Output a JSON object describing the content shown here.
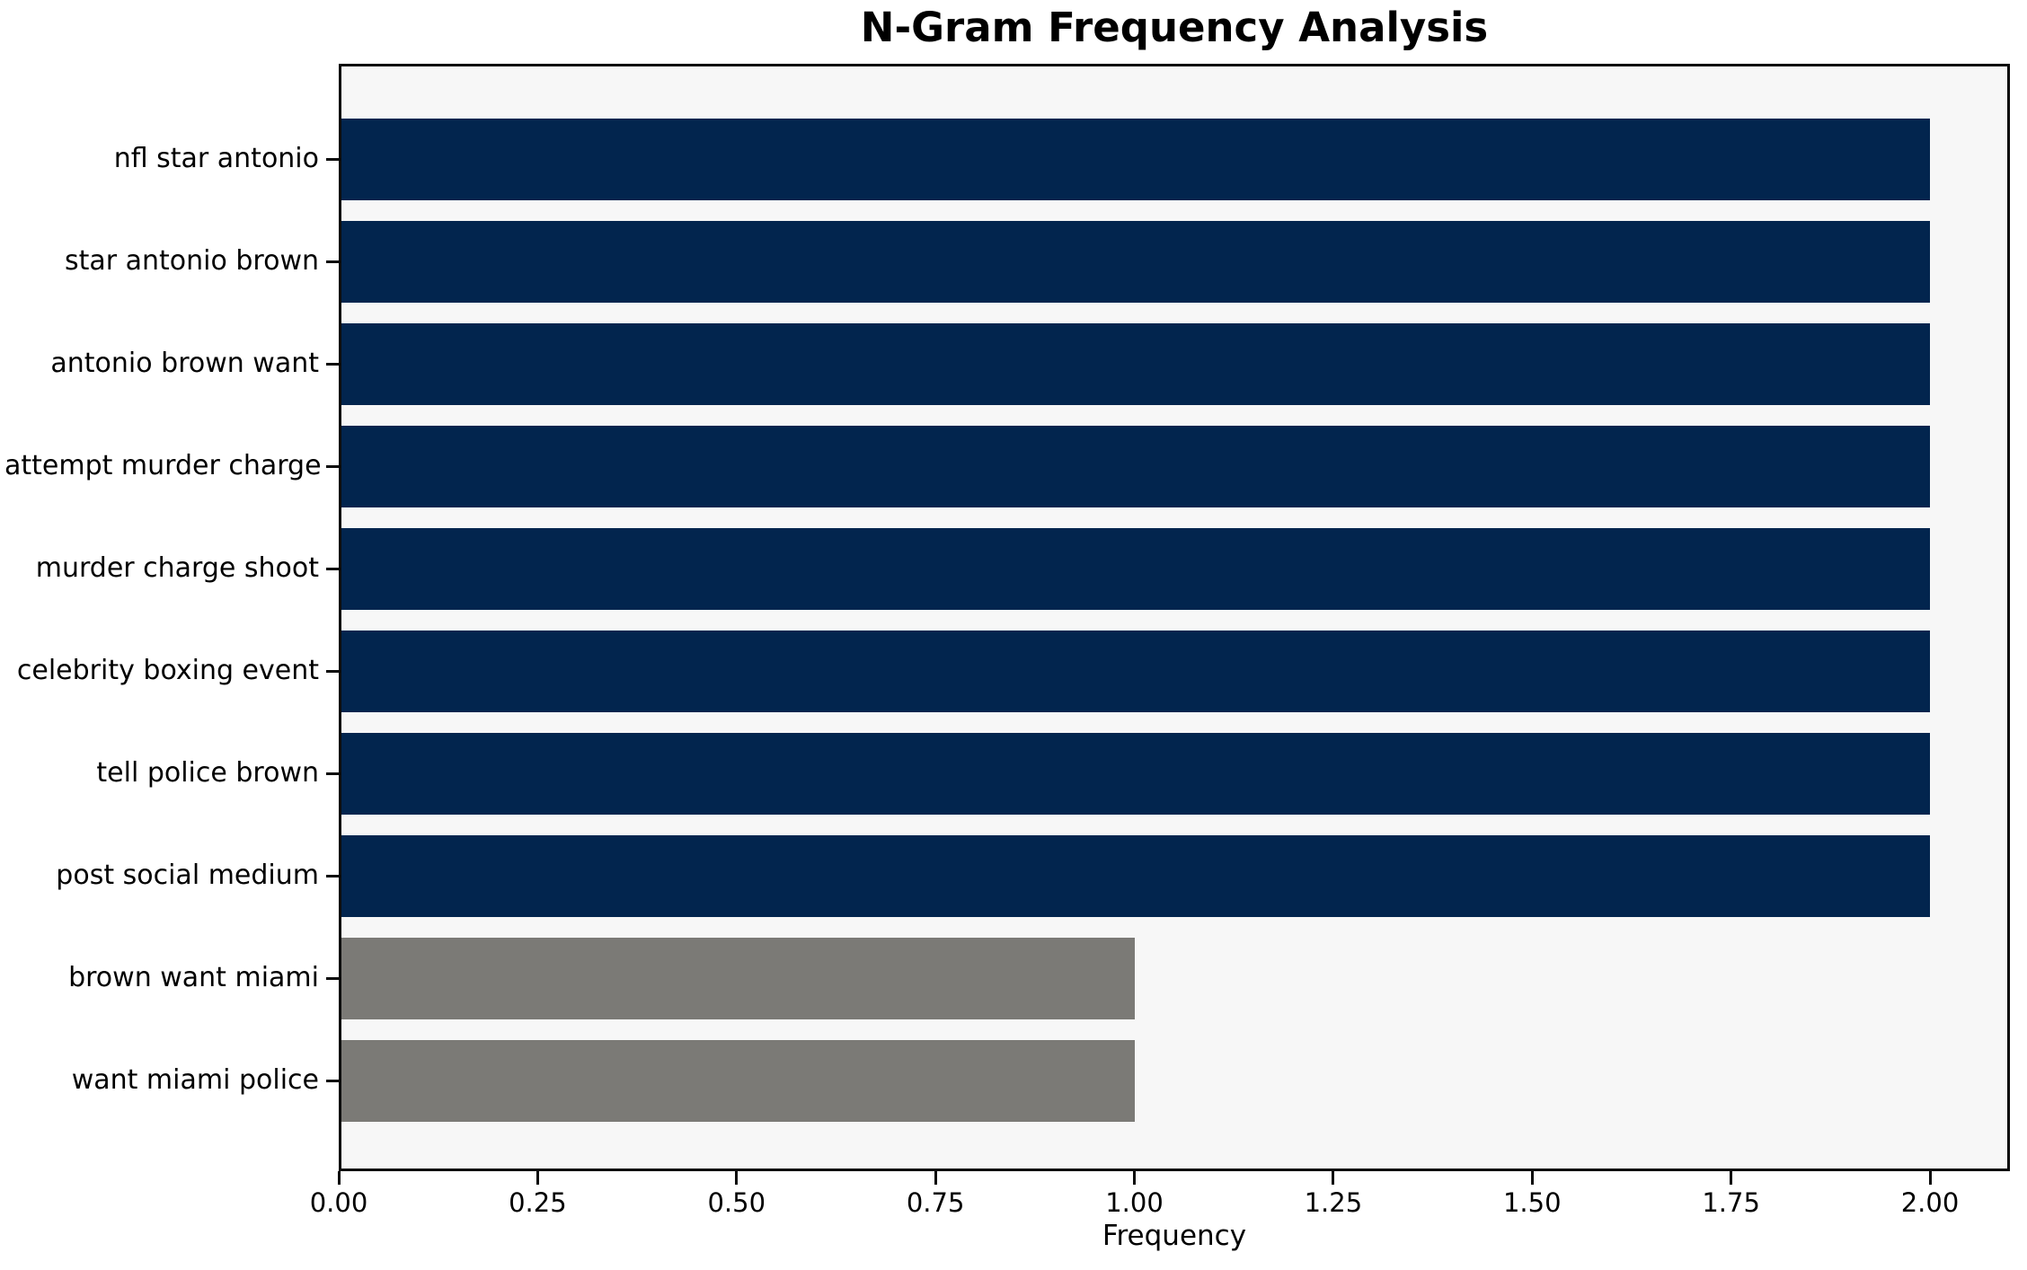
{
  "chart_data": {
    "type": "bar",
    "orientation": "horizontal",
    "title": "N-Gram Frequency Analysis",
    "xlabel": "Frequency",
    "ylabel": "",
    "categories": [
      "nfl star antonio",
      "star antonio brown",
      "antonio brown want",
      "attempt murder charge",
      "murder charge shoot",
      "celebrity boxing event",
      "tell police brown",
      "post social medium",
      "brown want miami",
      "want miami police"
    ],
    "values": [
      2,
      2,
      2,
      2,
      2,
      2,
      2,
      2,
      1,
      1
    ],
    "bar_colors": [
      "#02254e",
      "#02254e",
      "#02254e",
      "#02254e",
      "#02254e",
      "#02254e",
      "#02254e",
      "#02254e",
      "#7b7a76",
      "#7b7a76"
    ],
    "xlim": [
      0,
      2.1
    ],
    "xticks": [
      "0.00",
      "0.25",
      "0.50",
      "0.75",
      "1.00",
      "1.25",
      "1.50",
      "1.75",
      "2.00"
    ],
    "grid": false,
    "legend": "none",
    "colors": {
      "bar_primary": "#02254e",
      "bar_secondary": "#7b7a76",
      "plot_background": "#f7f7f7",
      "figure_background": "#ffffff",
      "axis": "#0a0a0a",
      "text": "#000000"
    }
  }
}
